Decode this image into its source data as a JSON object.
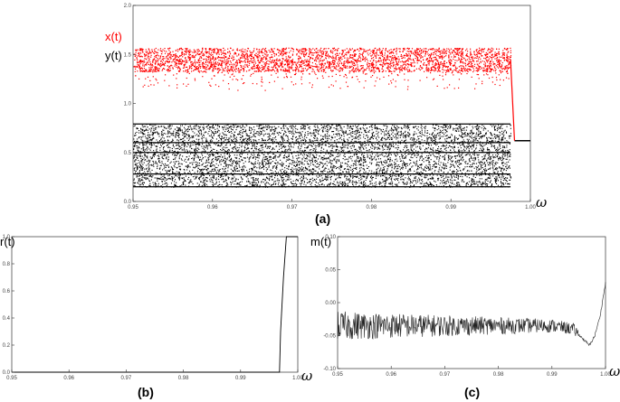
{
  "chart_data": [
    {
      "type": "scatter",
      "panel_label": "(a)",
      "xlabel": "ω",
      "xlim": [
        0.95,
        1.0
      ],
      "ylim": [
        0,
        2.0
      ],
      "x_ticks": [
        "0.95",
        "0.96",
        "0.97",
        "0.98",
        "0.99",
        "1.00"
      ],
      "y_ticks": [
        "0.0",
        "0.5",
        "1.0",
        "1.5",
        "2.0"
      ],
      "series": [
        {
          "name": "x(t)",
          "color": "#ff0000",
          "description_points": [
            [
              0.95,
              1.45
            ],
            [
              0.96,
              1.45
            ],
            [
              0.97,
              1.45
            ],
            [
              0.98,
              1.45
            ],
            [
              0.99,
              1.45
            ],
            [
              0.9975,
              1.45
            ],
            [
              0.998,
              0.62
            ]
          ],
          "chaotic_band": {
            "x_range": [
              0.95,
              0.9975
            ],
            "y_range": [
              1.2,
              1.6
            ]
          }
        },
        {
          "name": "y(t)",
          "color": "#000000",
          "chaotic_band": {
            "x_range": [
              0.95,
              0.9975
            ],
            "y_range": [
              0.15,
              0.79
            ]
          },
          "fixed_point": {
            "x_range": [
              0.998,
              1.0
            ],
            "y": 0.62
          }
        }
      ]
    },
    {
      "type": "line",
      "panel_label": "(b)",
      "ylabel": "r(t)",
      "xlabel": "ω",
      "xlim": [
        0.95,
        1.0
      ],
      "ylim": [
        0,
        1.0
      ],
      "x_ticks": [
        "0.95",
        "0.96",
        "0.97",
        "0.98",
        "0.99",
        "1.00"
      ],
      "y_ticks": [
        "0.0",
        "0.2",
        "0.4",
        "0.6",
        "0.8",
        "1.0"
      ],
      "x": [
        0.95,
        0.996,
        0.9968,
        0.997,
        0.9975,
        0.998,
        0.999,
        1.0
      ],
      "y": [
        0.0,
        0.0,
        0.0,
        0.3,
        0.7,
        1.0,
        1.0,
        1.0
      ]
    },
    {
      "type": "scatter",
      "panel_label": "(c)",
      "ylabel": "m(t)",
      "xlabel": "ω",
      "xlim": [
        0.95,
        1.0
      ],
      "ylim": [
        -0.1,
        0.1
      ],
      "x_ticks": [
        "0.95",
        "0.96",
        "0.97",
        "0.98",
        "0.99",
        "1.00"
      ],
      "y_ticks": [
        "-0.10",
        "-0.05",
        "0.00",
        "0.05",
        "0.10"
      ],
      "trend": [
        [
          0.95,
          -0.035
        ],
        [
          0.96,
          -0.035
        ],
        [
          0.97,
          -0.035
        ],
        [
          0.98,
          -0.035
        ],
        [
          0.99,
          -0.035
        ],
        [
          0.994,
          -0.04
        ],
        [
          0.997,
          -0.065
        ],
        [
          0.998,
          -0.05
        ],
        [
          0.999,
          -0.02
        ],
        [
          1.0,
          0.03
        ]
      ]
    }
  ]
}
